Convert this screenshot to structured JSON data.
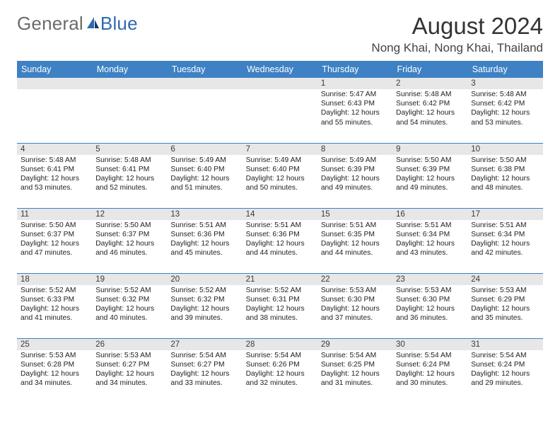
{
  "brand": {
    "general": "General",
    "blue": "Blue"
  },
  "header": {
    "month_title": "August 2024",
    "location": "Nong Khai, Nong Khai, Thailand"
  },
  "colors": {
    "header_bg": "#3e81c4",
    "header_text": "#ffffff",
    "daynum_bg": "#e7e7e7",
    "row_border": "#3e81c4",
    "logo_gray": "#6b6b6b",
    "logo_blue": "#2f6aaf"
  },
  "typography": {
    "month_title_fontsize": 33,
    "location_fontsize": 17,
    "weekday_fontsize": 12.5,
    "daynum_fontsize": 11.5,
    "cell_fontsize": 10.3
  },
  "calendar": {
    "weekdays": [
      "Sunday",
      "Monday",
      "Tuesday",
      "Wednesday",
      "Thursday",
      "Friday",
      "Saturday"
    ],
    "weeks": [
      [
        {
          "day": "",
          "sunrise": "",
          "sunset": "",
          "daylight": ""
        },
        {
          "day": "",
          "sunrise": "",
          "sunset": "",
          "daylight": ""
        },
        {
          "day": "",
          "sunrise": "",
          "sunset": "",
          "daylight": ""
        },
        {
          "day": "",
          "sunrise": "",
          "sunset": "",
          "daylight": ""
        },
        {
          "day": "1",
          "sunrise": "Sunrise: 5:47 AM",
          "sunset": "Sunset: 6:43 PM",
          "daylight": "Daylight: 12 hours and 55 minutes."
        },
        {
          "day": "2",
          "sunrise": "Sunrise: 5:48 AM",
          "sunset": "Sunset: 6:42 PM",
          "daylight": "Daylight: 12 hours and 54 minutes."
        },
        {
          "day": "3",
          "sunrise": "Sunrise: 5:48 AM",
          "sunset": "Sunset: 6:42 PM",
          "daylight": "Daylight: 12 hours and 53 minutes."
        }
      ],
      [
        {
          "day": "4",
          "sunrise": "Sunrise: 5:48 AM",
          "sunset": "Sunset: 6:41 PM",
          "daylight": "Daylight: 12 hours and 53 minutes."
        },
        {
          "day": "5",
          "sunrise": "Sunrise: 5:48 AM",
          "sunset": "Sunset: 6:41 PM",
          "daylight": "Daylight: 12 hours and 52 minutes."
        },
        {
          "day": "6",
          "sunrise": "Sunrise: 5:49 AM",
          "sunset": "Sunset: 6:40 PM",
          "daylight": "Daylight: 12 hours and 51 minutes."
        },
        {
          "day": "7",
          "sunrise": "Sunrise: 5:49 AM",
          "sunset": "Sunset: 6:40 PM",
          "daylight": "Daylight: 12 hours and 50 minutes."
        },
        {
          "day": "8",
          "sunrise": "Sunrise: 5:49 AM",
          "sunset": "Sunset: 6:39 PM",
          "daylight": "Daylight: 12 hours and 49 minutes."
        },
        {
          "day": "9",
          "sunrise": "Sunrise: 5:50 AM",
          "sunset": "Sunset: 6:39 PM",
          "daylight": "Daylight: 12 hours and 49 minutes."
        },
        {
          "day": "10",
          "sunrise": "Sunrise: 5:50 AM",
          "sunset": "Sunset: 6:38 PM",
          "daylight": "Daylight: 12 hours and 48 minutes."
        }
      ],
      [
        {
          "day": "11",
          "sunrise": "Sunrise: 5:50 AM",
          "sunset": "Sunset: 6:37 PM",
          "daylight": "Daylight: 12 hours and 47 minutes."
        },
        {
          "day": "12",
          "sunrise": "Sunrise: 5:50 AM",
          "sunset": "Sunset: 6:37 PM",
          "daylight": "Daylight: 12 hours and 46 minutes."
        },
        {
          "day": "13",
          "sunrise": "Sunrise: 5:51 AM",
          "sunset": "Sunset: 6:36 PM",
          "daylight": "Daylight: 12 hours and 45 minutes."
        },
        {
          "day": "14",
          "sunrise": "Sunrise: 5:51 AM",
          "sunset": "Sunset: 6:36 PM",
          "daylight": "Daylight: 12 hours and 44 minutes."
        },
        {
          "day": "15",
          "sunrise": "Sunrise: 5:51 AM",
          "sunset": "Sunset: 6:35 PM",
          "daylight": "Daylight: 12 hours and 44 minutes."
        },
        {
          "day": "16",
          "sunrise": "Sunrise: 5:51 AM",
          "sunset": "Sunset: 6:34 PM",
          "daylight": "Daylight: 12 hours and 43 minutes."
        },
        {
          "day": "17",
          "sunrise": "Sunrise: 5:51 AM",
          "sunset": "Sunset: 6:34 PM",
          "daylight": "Daylight: 12 hours and 42 minutes."
        }
      ],
      [
        {
          "day": "18",
          "sunrise": "Sunrise: 5:52 AM",
          "sunset": "Sunset: 6:33 PM",
          "daylight": "Daylight: 12 hours and 41 minutes."
        },
        {
          "day": "19",
          "sunrise": "Sunrise: 5:52 AM",
          "sunset": "Sunset: 6:32 PM",
          "daylight": "Daylight: 12 hours and 40 minutes."
        },
        {
          "day": "20",
          "sunrise": "Sunrise: 5:52 AM",
          "sunset": "Sunset: 6:32 PM",
          "daylight": "Daylight: 12 hours and 39 minutes."
        },
        {
          "day": "21",
          "sunrise": "Sunrise: 5:52 AM",
          "sunset": "Sunset: 6:31 PM",
          "daylight": "Daylight: 12 hours and 38 minutes."
        },
        {
          "day": "22",
          "sunrise": "Sunrise: 5:53 AM",
          "sunset": "Sunset: 6:30 PM",
          "daylight": "Daylight: 12 hours and 37 minutes."
        },
        {
          "day": "23",
          "sunrise": "Sunrise: 5:53 AM",
          "sunset": "Sunset: 6:30 PM",
          "daylight": "Daylight: 12 hours and 36 minutes."
        },
        {
          "day": "24",
          "sunrise": "Sunrise: 5:53 AM",
          "sunset": "Sunset: 6:29 PM",
          "daylight": "Daylight: 12 hours and 35 minutes."
        }
      ],
      [
        {
          "day": "25",
          "sunrise": "Sunrise: 5:53 AM",
          "sunset": "Sunset: 6:28 PM",
          "daylight": "Daylight: 12 hours and 34 minutes."
        },
        {
          "day": "26",
          "sunrise": "Sunrise: 5:53 AM",
          "sunset": "Sunset: 6:27 PM",
          "daylight": "Daylight: 12 hours and 34 minutes."
        },
        {
          "day": "27",
          "sunrise": "Sunrise: 5:54 AM",
          "sunset": "Sunset: 6:27 PM",
          "daylight": "Daylight: 12 hours and 33 minutes."
        },
        {
          "day": "28",
          "sunrise": "Sunrise: 5:54 AM",
          "sunset": "Sunset: 6:26 PM",
          "daylight": "Daylight: 12 hours and 32 minutes."
        },
        {
          "day": "29",
          "sunrise": "Sunrise: 5:54 AM",
          "sunset": "Sunset: 6:25 PM",
          "daylight": "Daylight: 12 hours and 31 minutes."
        },
        {
          "day": "30",
          "sunrise": "Sunrise: 5:54 AM",
          "sunset": "Sunset: 6:24 PM",
          "daylight": "Daylight: 12 hours and 30 minutes."
        },
        {
          "day": "31",
          "sunrise": "Sunrise: 5:54 AM",
          "sunset": "Sunset: 6:24 PM",
          "daylight": "Daylight: 12 hours and 29 minutes."
        }
      ]
    ]
  }
}
